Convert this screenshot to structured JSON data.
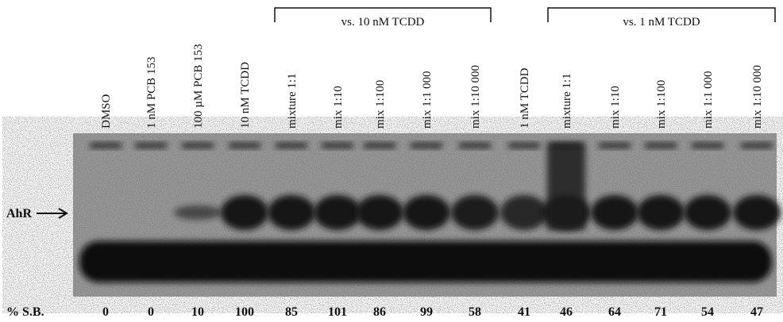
{
  "lanes": [
    {
      "label": "DMSO",
      "sb": "0"
    },
    {
      "label": "1 nM PCB 153",
      "sb": "0"
    },
    {
      "label": "100 µM PCB 153",
      "sb": "10"
    },
    {
      "label": "10 nM TCDD",
      "sb": "100"
    },
    {
      "label": "mixture 1:1",
      "sb": "85"
    },
    {
      "label": "mix 1:10",
      "sb": "101"
    },
    {
      "label": "mix 1:100",
      "sb": "86"
    },
    {
      "label": "mix 1:1 000",
      "sb": "99"
    },
    {
      "label": "mix 1:10 000",
      "sb": "58"
    },
    {
      "label": "1 nM TCDD",
      "sb": "41"
    },
    {
      "label": "mixture 1:1",
      "sb": "46"
    },
    {
      "label": "mix 1:10",
      "sb": "64"
    },
    {
      "label": "mix 1:100",
      "sb": "71"
    },
    {
      "label": "mix 1:1 000",
      "sb": "54"
    },
    {
      "label": "mix 1:10 000",
      "sb": "47"
    }
  ],
  "groups": [
    "vs. 10 nM TCDD",
    "vs. 1 nM TCDD"
  ],
  "band_label": "AhR",
  "row_label": "% S.B."
}
